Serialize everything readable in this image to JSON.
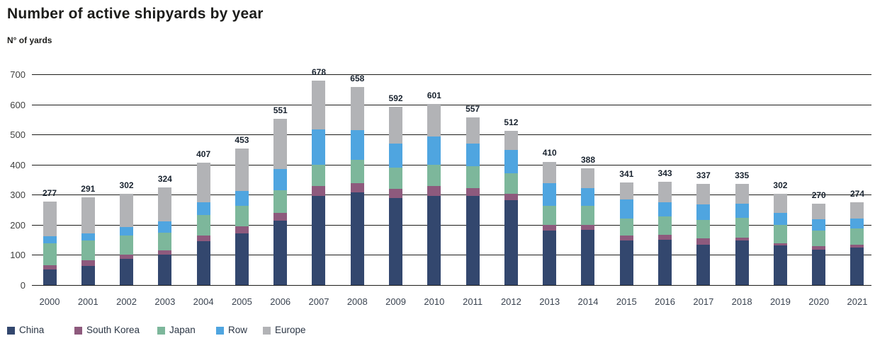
{
  "header": {
    "title": "Number of active shipyards by year",
    "subtitle": "N° of yards"
  },
  "chart_data": {
    "type": "bar",
    "stacked": true,
    "title": "Number of active shipyards by year",
    "ylabel": "N° of yards",
    "xlabel": "",
    "ylim": [
      0,
      700
    ],
    "yticks": [
      0,
      100,
      200,
      300,
      400,
      500,
      600,
      700
    ],
    "grid": true,
    "legend_position": "bottom",
    "categories": [
      "2000",
      "2001",
      "2002",
      "2003",
      "2004",
      "2005",
      "2006",
      "2007",
      "2008",
      "2009",
      "2010",
      "2011",
      "2012",
      "2013",
      "2014",
      "2015",
      "2016",
      "2017",
      "2018",
      "2019",
      "2020",
      "2021"
    ],
    "totals": [
      277,
      291,
      302,
      324,
      407,
      453,
      551,
      678,
      658,
      592,
      601,
      557,
      512,
      410,
      388,
      341,
      343,
      337,
      335,
      302,
      270,
      274
    ],
    "series": [
      {
        "name": "China",
        "color": "#33476e",
        "values": [
          52,
          64,
          86,
          101,
          146,
          172,
          214,
          295,
          307,
          289,
          297,
          295,
          281,
          181,
          183,
          148,
          151,
          135,
          147,
          131,
          117,
          124
        ]
      },
      {
        "name": "South Korea",
        "color": "#8e5a7d",
        "values": [
          14,
          19,
          15,
          15,
          18,
          22,
          26,
          34,
          31,
          31,
          31,
          27,
          22,
          18,
          16,
          16,
          17,
          20,
          11,
          7,
          12,
          11
        ]
      },
      {
        "name": "Japan",
        "color": "#7db79b",
        "values": [
          72,
          66,
          64,
          59,
          69,
          68,
          74,
          70,
          77,
          69,
          72,
          73,
          68,
          65,
          65,
          58,
          60,
          62,
          65,
          61,
          52,
          53
        ]
      },
      {
        "name": "Row",
        "color": "#4fa5e0",
        "values": [
          25,
          23,
          27,
          36,
          41,
          51,
          71,
          117,
          99,
          81,
          94,
          76,
          77,
          74,
          58,
          63,
          47,
          51,
          48,
          41,
          37,
          33
        ]
      },
      {
        "name": "Europe",
        "color": "#b2b3b6",
        "values": [
          114,
          119,
          110,
          113,
          133,
          140,
          166,
          162,
          144,
          122,
          107,
          86,
          64,
          72,
          66,
          56,
          68,
          69,
          64,
          62,
          52,
          53
        ]
      }
    ]
  }
}
